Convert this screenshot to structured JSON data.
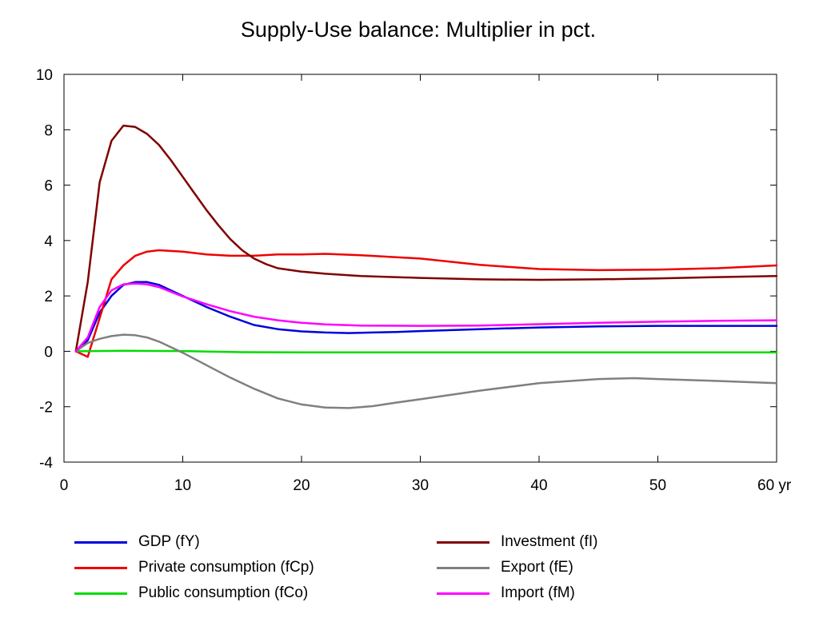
{
  "chart_data": {
    "type": "line",
    "title": "Supply-Use balance: Multiplier in pct.",
    "xlabel": "",
    "ylabel": "",
    "xlim": [
      0,
      60
    ],
    "ylim": [
      -4,
      10
    ],
    "x_ticks": [
      0,
      10,
      20,
      30,
      40,
      50,
      60
    ],
    "x_tick_labels": [
      "0",
      "10",
      "20",
      "30",
      "40",
      "50",
      "60 yr"
    ],
    "y_ticks": [
      -4,
      -2,
      0,
      2,
      4,
      6,
      8,
      10
    ],
    "y_tick_labels": [
      "-4",
      "-2",
      "0",
      "2",
      "4",
      "6",
      "8",
      "10"
    ],
    "grid": false,
    "legend_position": "bottom",
    "series": [
      {
        "name": "GDP (fY)",
        "color": "#0000dd",
        "points": [
          [
            1,
            0
          ],
          [
            2,
            0.4
          ],
          [
            3,
            1.4
          ],
          [
            4,
            2.0
          ],
          [
            5,
            2.4
          ],
          [
            6,
            2.5
          ],
          [
            7,
            2.5
          ],
          [
            8,
            2.4
          ],
          [
            9,
            2.2
          ],
          [
            10,
            2.0
          ],
          [
            12,
            1.6
          ],
          [
            14,
            1.25
          ],
          [
            16,
            0.95
          ],
          [
            18,
            0.8
          ],
          [
            20,
            0.72
          ],
          [
            22,
            0.68
          ],
          [
            24,
            0.66
          ],
          [
            26,
            0.68
          ],
          [
            28,
            0.7
          ],
          [
            30,
            0.73
          ],
          [
            35,
            0.8
          ],
          [
            40,
            0.86
          ],
          [
            45,
            0.9
          ],
          [
            50,
            0.92
          ],
          [
            55,
            0.92
          ],
          [
            60,
            0.92
          ]
        ]
      },
      {
        "name": "Private consumption (fCp)",
        "color": "#ee0000",
        "points": [
          [
            1,
            0
          ],
          [
            2,
            -0.2
          ],
          [
            3,
            1.2
          ],
          [
            4,
            2.6
          ],
          [
            5,
            3.1
          ],
          [
            6,
            3.45
          ],
          [
            7,
            3.6
          ],
          [
            8,
            3.65
          ],
          [
            10,
            3.6
          ],
          [
            12,
            3.5
          ],
          [
            14,
            3.45
          ],
          [
            16,
            3.45
          ],
          [
            18,
            3.5
          ],
          [
            20,
            3.5
          ],
          [
            22,
            3.52
          ],
          [
            25,
            3.47
          ],
          [
            30,
            3.35
          ],
          [
            35,
            3.12
          ],
          [
            40,
            2.97
          ],
          [
            45,
            2.93
          ],
          [
            50,
            2.95
          ],
          [
            55,
            3.0
          ],
          [
            60,
            3.1
          ]
        ]
      },
      {
        "name": "Public consumption (fCo)",
        "color": "#00dd00",
        "points": [
          [
            1,
            0
          ],
          [
            5,
            0.02
          ],
          [
            10,
            0.01
          ],
          [
            15,
            -0.03
          ],
          [
            20,
            -0.04
          ],
          [
            30,
            -0.04
          ],
          [
            40,
            -0.04
          ],
          [
            50,
            -0.04
          ],
          [
            60,
            -0.04
          ]
        ]
      },
      {
        "name": "Investment (fI)",
        "color": "#800000",
        "points": [
          [
            1,
            0
          ],
          [
            2,
            2.5
          ],
          [
            3,
            6.1
          ],
          [
            4,
            7.6
          ],
          [
            5,
            8.15
          ],
          [
            6,
            8.1
          ],
          [
            7,
            7.85
          ],
          [
            8,
            7.45
          ],
          [
            9,
            6.9
          ],
          [
            10,
            6.3
          ],
          [
            11,
            5.7
          ],
          [
            12,
            5.1
          ],
          [
            13,
            4.55
          ],
          [
            14,
            4.05
          ],
          [
            15,
            3.65
          ],
          [
            16,
            3.35
          ],
          [
            17,
            3.15
          ],
          [
            18,
            3.0
          ],
          [
            20,
            2.88
          ],
          [
            22,
            2.8
          ],
          [
            25,
            2.72
          ],
          [
            30,
            2.65
          ],
          [
            35,
            2.6
          ],
          [
            40,
            2.58
          ],
          [
            45,
            2.6
          ],
          [
            50,
            2.63
          ],
          [
            55,
            2.68
          ],
          [
            60,
            2.72
          ]
        ]
      },
      {
        "name": "Export (fE)",
        "color": "#808080",
        "points": [
          [
            1,
            0
          ],
          [
            2,
            0.3
          ],
          [
            3,
            0.45
          ],
          [
            4,
            0.55
          ],
          [
            5,
            0.6
          ],
          [
            6,
            0.58
          ],
          [
            7,
            0.5
          ],
          [
            8,
            0.35
          ],
          [
            9,
            0.15
          ],
          [
            10,
            -0.05
          ],
          [
            12,
            -0.5
          ],
          [
            14,
            -0.95
          ],
          [
            16,
            -1.35
          ],
          [
            18,
            -1.7
          ],
          [
            20,
            -1.92
          ],
          [
            22,
            -2.03
          ],
          [
            24,
            -2.05
          ],
          [
            26,
            -1.98
          ],
          [
            28,
            -1.85
          ],
          [
            30,
            -1.73
          ],
          [
            35,
            -1.42
          ],
          [
            40,
            -1.15
          ],
          [
            45,
            -1.0
          ],
          [
            48,
            -0.97
          ],
          [
            50,
            -1.0
          ],
          [
            55,
            -1.07
          ],
          [
            60,
            -1.15
          ]
        ]
      },
      {
        "name": "Import (fM)",
        "color": "#ff00ff",
        "points": [
          [
            1,
            0
          ],
          [
            2,
            0.5
          ],
          [
            3,
            1.6
          ],
          [
            4,
            2.2
          ],
          [
            5,
            2.42
          ],
          [
            6,
            2.45
          ],
          [
            7,
            2.42
          ],
          [
            8,
            2.32
          ],
          [
            9,
            2.15
          ],
          [
            10,
            1.98
          ],
          [
            12,
            1.7
          ],
          [
            14,
            1.45
          ],
          [
            16,
            1.25
          ],
          [
            18,
            1.12
          ],
          [
            20,
            1.03
          ],
          [
            22,
            0.97
          ],
          [
            25,
            0.93
          ],
          [
            30,
            0.92
          ],
          [
            35,
            0.93
          ],
          [
            40,
            0.98
          ],
          [
            45,
            1.03
          ],
          [
            50,
            1.07
          ],
          [
            55,
            1.1
          ],
          [
            60,
            1.12
          ]
        ]
      }
    ]
  }
}
